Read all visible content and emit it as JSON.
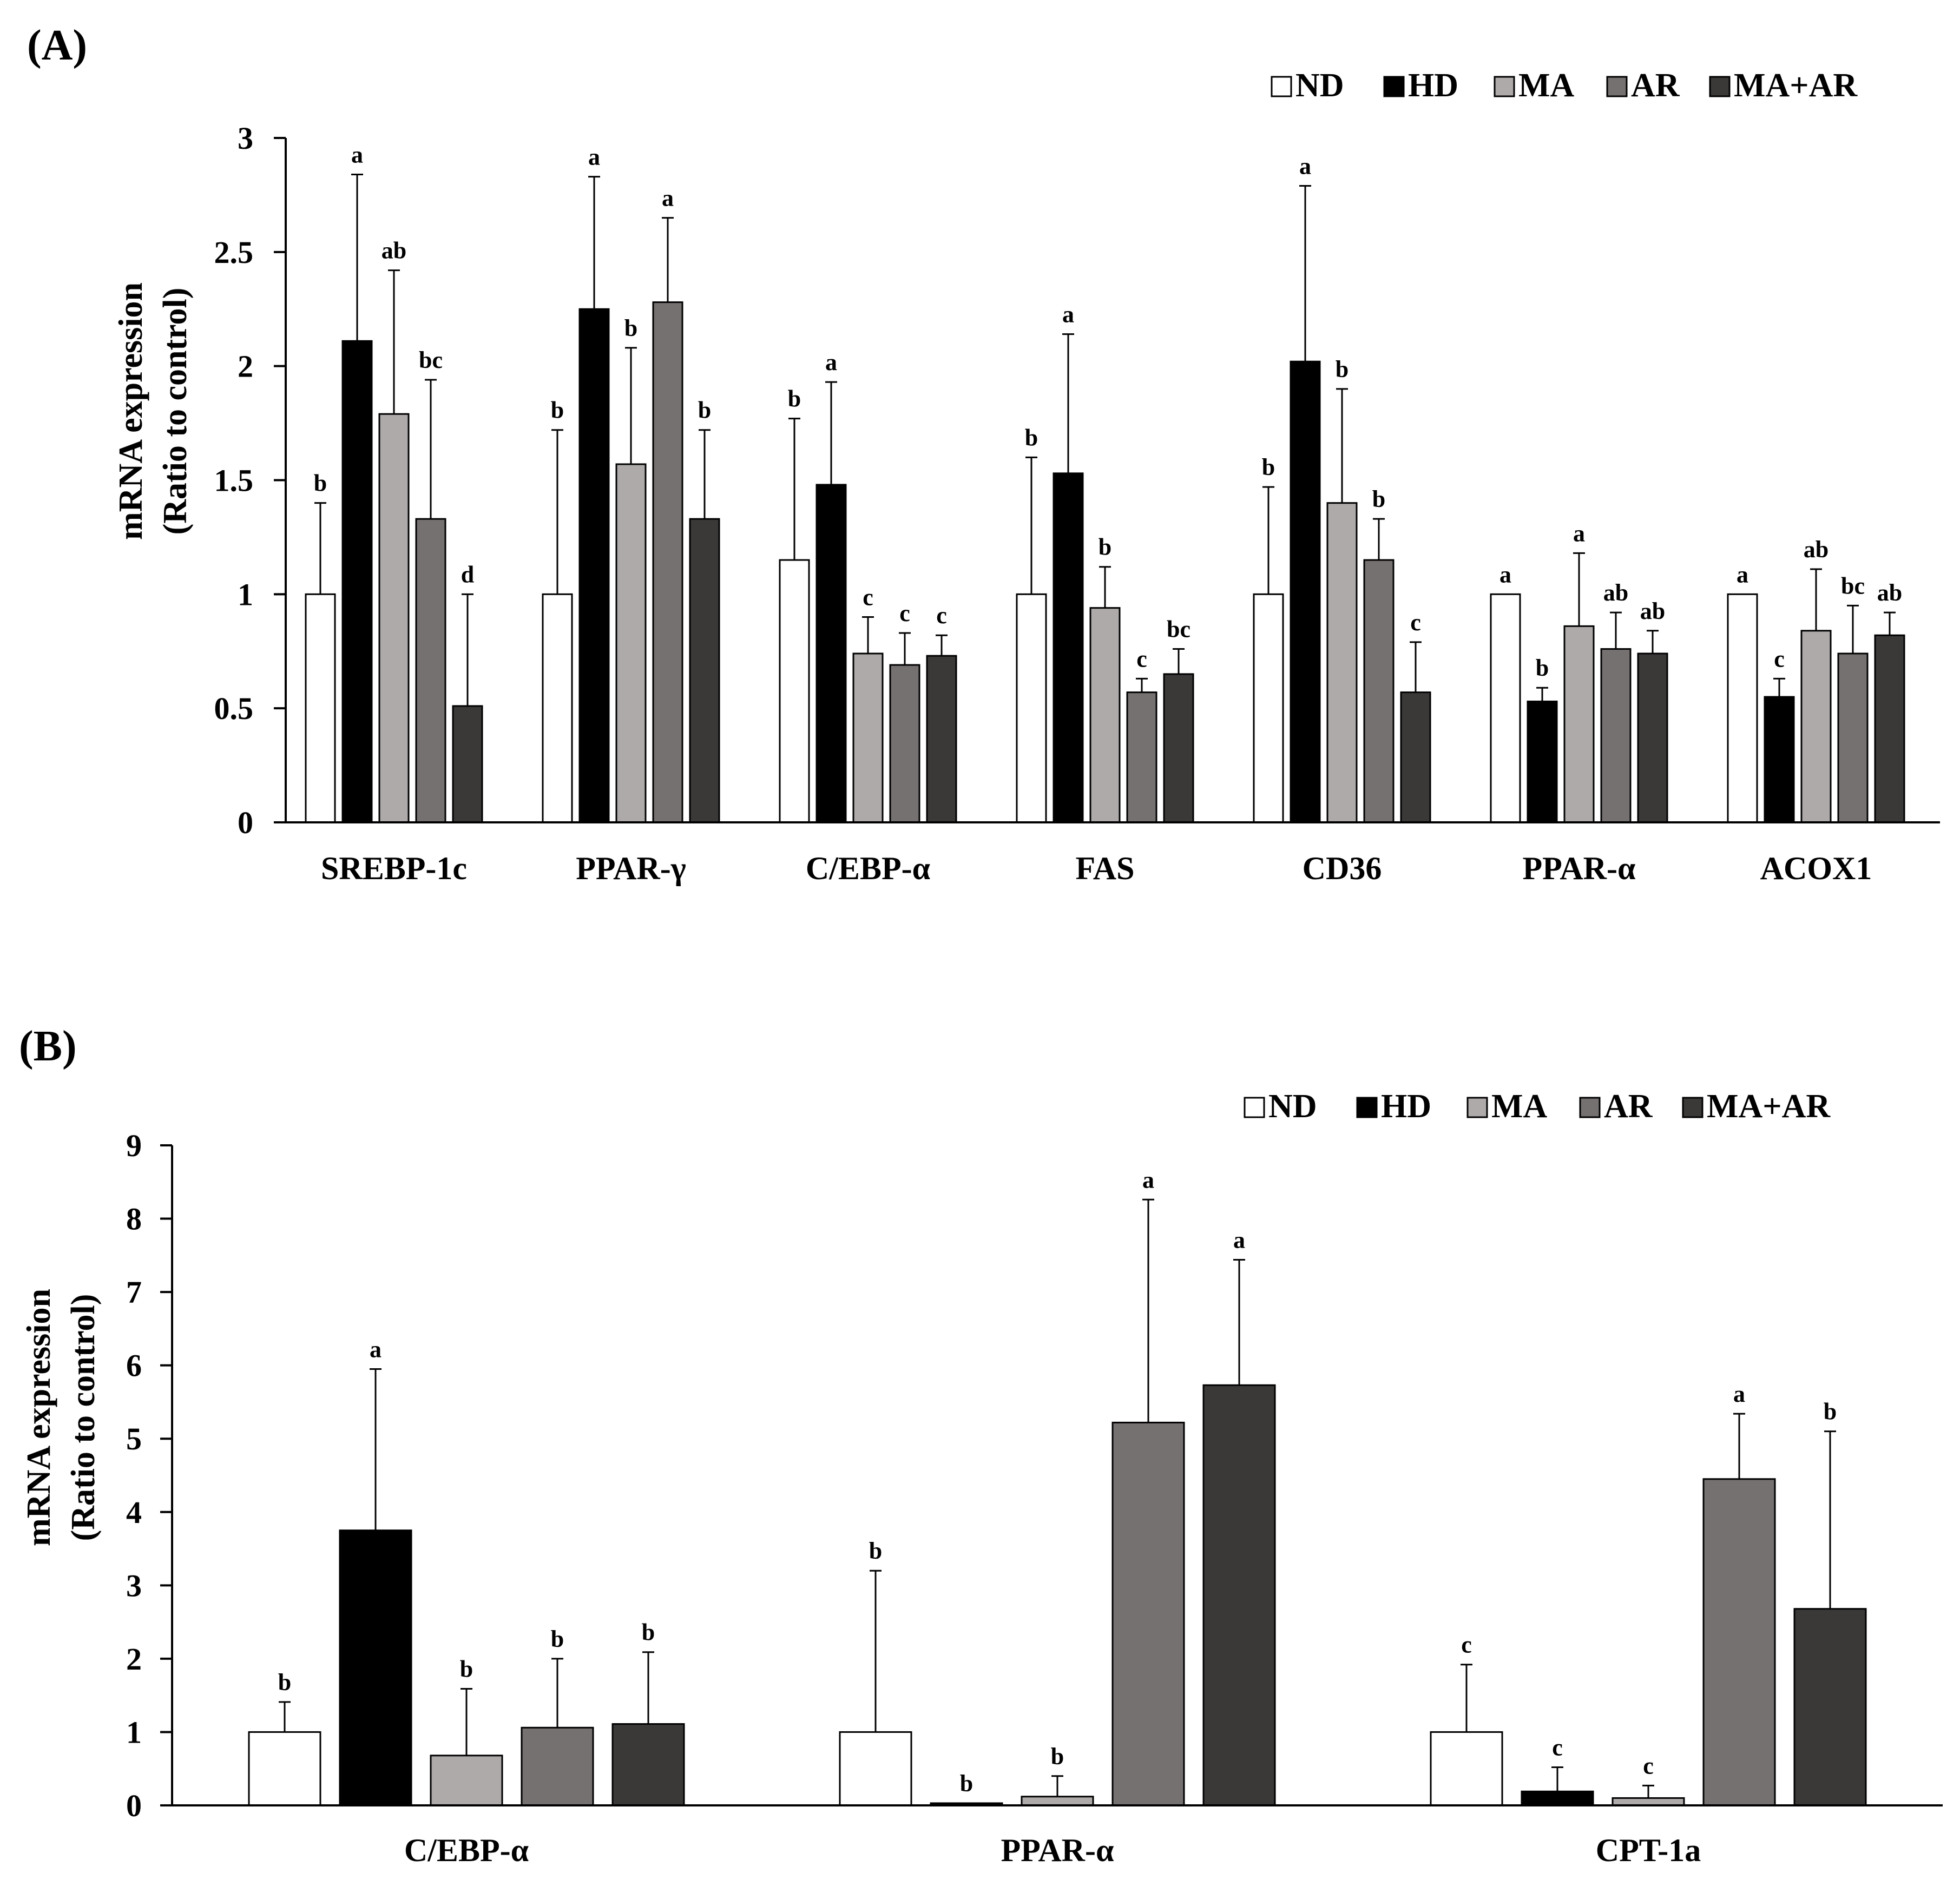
{
  "colors": {
    "ND": "#ffffff",
    "HD": "#000000",
    "MA": "#aeaaaa",
    "AR": "#767171",
    "MA+AR": "#3b3838",
    "stroke": "#000000"
  },
  "chart_data": [
    {
      "type": "bar",
      "panel_label": "(A)",
      "ylabel_line1": "mRNA expression",
      "ylabel_line2": "(Ratio to control)",
      "ylim": [
        0,
        3
      ],
      "yticks": [
        "0",
        "0.5",
        "1",
        "1.5",
        "2",
        "2.5",
        "3"
      ],
      "categories": [
        "SREBP-1c",
        "PPAR-γ",
        "C/EBP-α",
        "FAS",
        "CD36",
        "PPAR-α",
        "ACOX1"
      ],
      "legend": [
        "ND",
        "HD",
        "MA",
        "AR",
        "MA+AR"
      ],
      "series": [
        {
          "name": "ND",
          "values": [
            1.0,
            1.0,
            1.15,
            1.0,
            1.0,
            1.0,
            1.0
          ],
          "errors": [
            0.4,
            0.72,
            0.62,
            0.6,
            0.47,
            0.0,
            0.0
          ],
          "labels": [
            "b",
            "b",
            "b",
            "b",
            "b",
            "a",
            "a"
          ]
        },
        {
          "name": "HD",
          "values": [
            2.11,
            2.25,
            1.48,
            1.53,
            2.02,
            0.53,
            0.55
          ],
          "errors": [
            0.73,
            0.58,
            0.45,
            0.61,
            0.77,
            0.06,
            0.08
          ],
          "labels": [
            "a",
            "a",
            "a",
            "a",
            "a",
            "b",
            "c"
          ]
        },
        {
          "name": "MA",
          "values": [
            1.79,
            1.57,
            0.74,
            0.94,
            1.4,
            0.86,
            0.84
          ],
          "errors": [
            0.63,
            0.51,
            0.16,
            0.18,
            0.5,
            0.32,
            0.27
          ],
          "labels": [
            "ab",
            "b",
            "c",
            "b",
            "b",
            "a",
            "ab"
          ]
        },
        {
          "name": "AR",
          "values": [
            1.33,
            2.28,
            0.69,
            0.57,
            1.15,
            0.76,
            0.74
          ],
          "errors": [
            0.61,
            0.37,
            0.14,
            0.06,
            0.18,
            0.16,
            0.21
          ],
          "labels": [
            "bc",
            "a",
            "c",
            "c",
            "b",
            "ab",
            "bc"
          ]
        },
        {
          "name": "MA+AR",
          "values": [
            0.51,
            1.33,
            0.73,
            0.65,
            0.57,
            0.74,
            0.82
          ],
          "errors": [
            0.49,
            0.39,
            0.09,
            0.11,
            0.22,
            0.1,
            0.1
          ],
          "labels": [
            "d",
            "b",
            "c",
            "bc",
            "c",
            "ab",
            "ab"
          ]
        }
      ]
    },
    {
      "type": "bar",
      "panel_label": "(B)",
      "ylabel_line1": "mRNA expression",
      "ylabel_line2": "(Ratio to control)",
      "ylim": [
        0,
        9
      ],
      "yticks": [
        "0",
        "1",
        "2",
        "3",
        "4",
        "5",
        "6",
        "7",
        "8",
        "9"
      ],
      "categories": [
        "C/EBP-α",
        "PPAR-α",
        "CPT-1a"
      ],
      "legend": [
        "ND",
        "HD",
        "MA",
        "AR",
        "MA+AR"
      ],
      "series": [
        {
          "name": "ND",
          "values": [
            1.0,
            1.0,
            1.0
          ],
          "errors": [
            0.41,
            2.2,
            0.92
          ],
          "labels": [
            "b",
            "b",
            "c"
          ]
        },
        {
          "name": "HD",
          "values": [
            3.75,
            0.03,
            0.19
          ],
          "errors": [
            2.2,
            0.0,
            0.33
          ],
          "labels": [
            "a",
            "b",
            "c"
          ]
        },
        {
          "name": "MA",
          "values": [
            0.68,
            0.12,
            0.1
          ],
          "errors": [
            0.91,
            0.28,
            0.17
          ],
          "labels": [
            "b",
            "b",
            "c"
          ]
        },
        {
          "name": "AR",
          "values": [
            1.06,
            5.22,
            4.45
          ],
          "errors": [
            0.94,
            3.04,
            0.89
          ],
          "labels": [
            "b",
            "a",
            "a"
          ]
        },
        {
          "name": "MA+AR",
          "values": [
            1.11,
            5.73,
            2.68
          ],
          "errors": [
            0.98,
            1.71,
            2.42
          ],
          "labels": [
            "b",
            "a",
            "b"
          ]
        }
      ]
    }
  ]
}
